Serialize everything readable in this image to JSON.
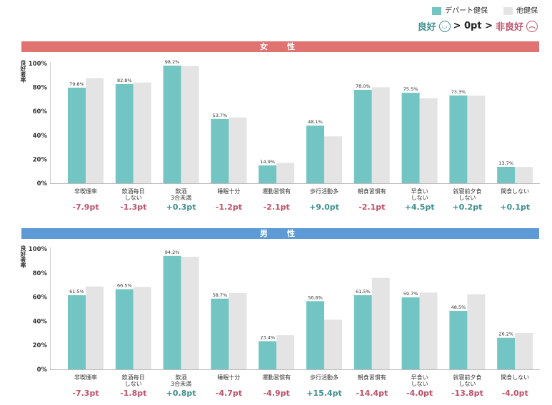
{
  "legend": {
    "dept": "デパート健保",
    "other": "他健保",
    "dept_color": "#72c5c2",
    "other_color": "#e4e4e4"
  },
  "rule": {
    "good": "良好",
    "mid": "> 0pt >",
    "bad": "非良好"
  },
  "colors": {
    "female": "#e07272",
    "male": "#5e9bd6",
    "pos": "#3f8f8f",
    "neg": "#c05068"
  },
  "chart_data": [
    {
      "type": "bar",
      "title": "女　性",
      "ylabel": "良好者率",
      "ylim": [
        0,
        100
      ],
      "yticks": [
        "0%",
        "20%",
        "40%",
        "60%",
        "80%",
        "100%"
      ],
      "categories": [
        "非喫煙率",
        "飲酒毎日\nしない",
        "飲酒\n3合未満",
        "睡眠十分",
        "運動習慣有",
        "歩行活動多",
        "朝食習慣有",
        "早食い\nしない",
        "就寝前夕食\nしない",
        "間食しない"
      ],
      "series": [
        {
          "name": "デパート健保",
          "values": [
            79.8,
            82.8,
            98.2,
            53.7,
            14.9,
            48.1,
            78.0,
            75.5,
            73.3,
            13.7
          ]
        },
        {
          "name": "他健保",
          "values": [
            87.7,
            84.1,
            97.9,
            54.9,
            17.0,
            39.1,
            80.1,
            71.0,
            73.1,
            13.6
          ]
        }
      ],
      "labels": [
        "79.8%",
        "82.8%",
        "98.2%",
        "53.7%",
        "14.9%",
        "48.1%",
        "78.0%",
        "75.5%",
        "73.3%",
        "13.7%"
      ],
      "diffs": [
        "-7.9pt",
        "-1.3pt",
        "+0.3pt",
        "-1.2pt",
        "-2.1pt",
        "+9.0pt",
        "-2.1pt",
        "+4.5pt",
        "+0.2pt",
        "+0.1pt"
      ]
    },
    {
      "type": "bar",
      "title": "男　性",
      "ylabel": "良好者率",
      "ylim": [
        0,
        100
      ],
      "yticks": [
        "0%",
        "20%",
        "40%",
        "60%",
        "80%",
        "100%"
      ],
      "categories": [
        "非喫煙率",
        "飲酒毎日\nしない",
        "飲酒\n3合未満",
        "睡眠十分",
        "運動習慣有",
        "歩行活動多",
        "朝食習慣有",
        "早食い\nしない",
        "就寝前夕食\nしない",
        "間食しない"
      ],
      "series": [
        {
          "name": "デパート健保",
          "values": [
            61.5,
            66.5,
            94.2,
            58.7,
            23.4,
            56.6,
            61.5,
            59.7,
            48.5,
            26.2
          ]
        },
        {
          "name": "他健保",
          "values": [
            68.8,
            68.3,
            93.4,
            63.4,
            28.3,
            41.2,
            75.9,
            63.7,
            62.3,
            30.2
          ]
        }
      ],
      "labels": [
        "61.5%",
        "66.5%",
        "94.2%",
        "58.7%",
        "23.4%",
        "56.6%",
        "61.5%",
        "59.7%",
        "48.5%",
        "26.2%"
      ],
      "diffs": [
        "-7.3pt",
        "-1.8pt",
        "+0.8pt",
        "-4.7pt",
        "-4.9pt",
        "+15.4pt",
        "-14.4pt",
        "-4.0pt",
        "-13.8pt",
        "-4.0pt"
      ]
    }
  ]
}
